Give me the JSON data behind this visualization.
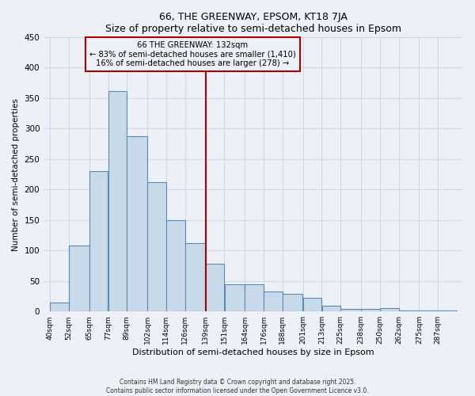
{
  "title": "66, THE GREENWAY, EPSOM, KT18 7JA",
  "subtitle": "Size of property relative to semi-detached houses in Epsom",
  "xlabel": "Distribution of semi-detached houses by size in Epsom",
  "ylabel": "Number of semi-detached properties",
  "bin_labels": [
    "40sqm",
    "52sqm",
    "65sqm",
    "77sqm",
    "89sqm",
    "102sqm",
    "114sqm",
    "126sqm",
    "139sqm",
    "151sqm",
    "164sqm",
    "176sqm",
    "188sqm",
    "201sqm",
    "213sqm",
    "225sqm",
    "238sqm",
    "250sqm",
    "262sqm",
    "275sqm",
    "287sqm"
  ],
  "bar_heights": [
    15,
    108,
    230,
    362,
    287,
    212,
    150,
    112,
    78,
    45,
    45,
    33,
    29,
    22,
    9,
    4,
    4,
    5,
    2,
    1,
    2
  ],
  "bar_color": "#c8daea",
  "bar_edge_color": "#5a8ab0",
  "vline_x_bin_right": 8,
  "vline_color": "#aa0000",
  "annotation_title": "66 THE GREENWAY: 132sqm",
  "annotation_line1": "← 83% of semi-detached houses are smaller (1,410)",
  "annotation_line2": "16% of semi-detached houses are larger (278) →",
  "annotation_box_edge": "#aa0000",
  "ylim": [
    0,
    450
  ],
  "bin_edges": [
    40,
    52,
    65,
    77,
    89,
    102,
    114,
    126,
    139,
    151,
    164,
    176,
    188,
    201,
    213,
    225,
    238,
    250,
    262,
    275,
    287,
    299
  ],
  "footer1": "Contains HM Land Registry data © Crown copyright and database right 2025.",
  "footer2": "Contains public sector information licensed under the Open Government Licence v3.0.",
  "bg_color": "#edf1f7",
  "grid_color": "#d0d8e8",
  "yticks": [
    0,
    50,
    100,
    150,
    200,
    250,
    300,
    350,
    400,
    450
  ]
}
